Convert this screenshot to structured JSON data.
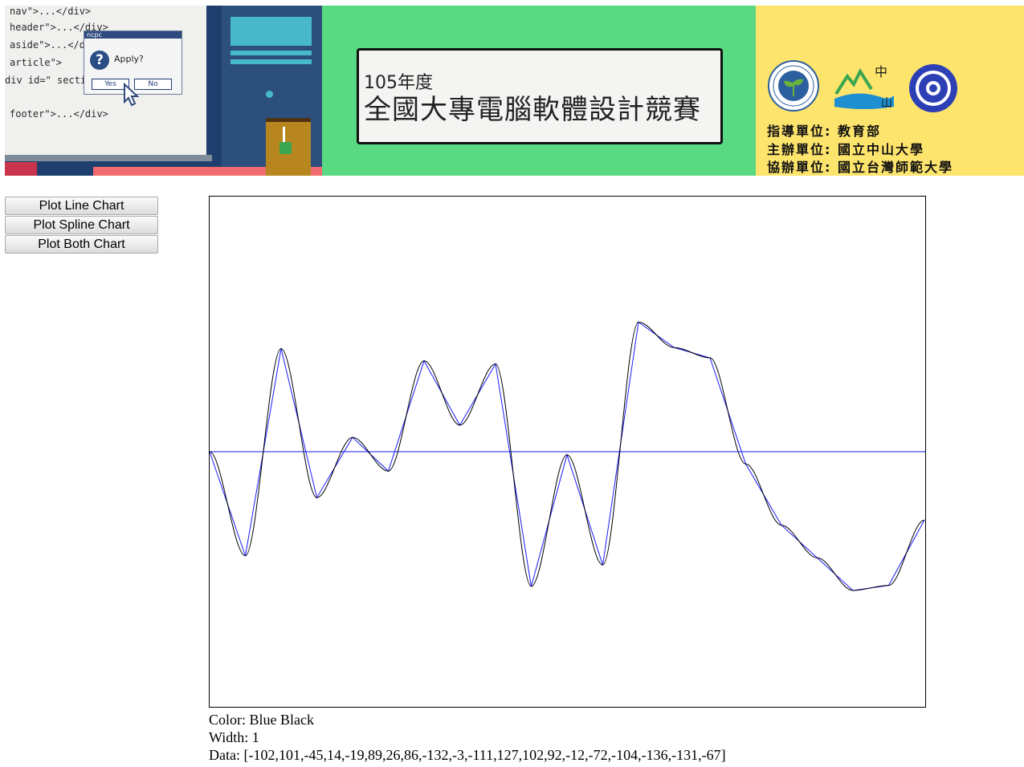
{
  "banner": {
    "code_lines": [
      "nav\">...</div>",
      "header\">...</div>",
      "aside\">...</d",
      "article\">",
      "div id=\" sectio",
      "footer\">...</div>"
    ],
    "dialog": {
      "title": "ncpc",
      "message": "Apply?",
      "yes_label": "Yes",
      "no_label": "No"
    },
    "title_year": "105年度",
    "title_main": "全國大專電腦軟體設計競賽",
    "sponsors": [
      "指導單位: 教育部",
      "主辦單位: 國立中山大學",
      "協辦單位: 國立台灣師範大學"
    ],
    "logo_moe_text": "MINISTRY OF EDUCATION",
    "logo_moe_seal": "教育部",
    "colors": {
      "banner_green": "#5ad983",
      "sponsor_yellow": "#fde46c",
      "monitor_blue": "#1e3f6e"
    }
  },
  "controls": {
    "line_button": "Plot Line Chart",
    "spline_button": "Plot Spline Chart",
    "both_button": "Plot Both Chart"
  },
  "info": {
    "color_text": "Color: Blue Black",
    "width_text": "Width: 1",
    "data_text": "Data: [-102,101,-45,14,-19,89,26,86,-132,-3,-111,127,102,92,-12,-72,-104,-136,-131,-67]"
  },
  "chart_data": {
    "type": "line",
    "title": "",
    "xlabel": "",
    "ylabel": "",
    "ylim": [
      -250,
      250
    ],
    "baseline": 0,
    "line_width": 1,
    "series": [
      {
        "style": "line",
        "color": "#1a1aff",
        "values": [
          0,
          -102,
          101,
          -45,
          14,
          -19,
          89,
          26,
          86,
          -132,
          -3,
          -111,
          127,
          102,
          92,
          -12,
          -72,
          -104,
          -136,
          -131,
          -67
        ]
      },
      {
        "style": "spline",
        "color": "#000000",
        "values": [
          0,
          -102,
          101,
          -45,
          14,
          -19,
          89,
          26,
          86,
          -132,
          -3,
          -111,
          127,
          102,
          92,
          -12,
          -72,
          -104,
          -136,
          -131,
          -67
        ]
      }
    ],
    "grid": false
  }
}
